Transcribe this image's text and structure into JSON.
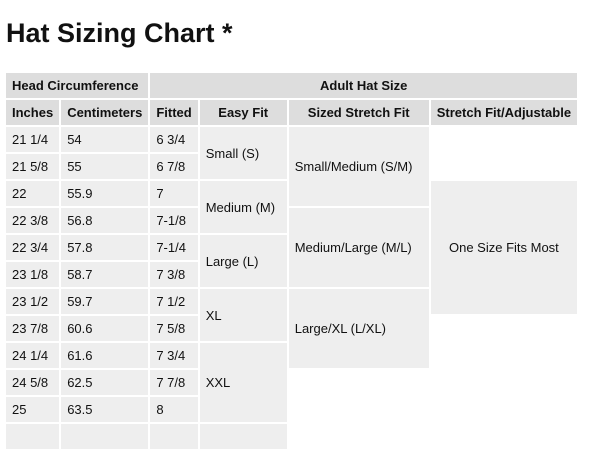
{
  "title": "Hat Sizing Chart *",
  "group_headers": {
    "head": "Head Circumference",
    "adult": "Adult Hat Size"
  },
  "columns": [
    "Inches",
    "Centimeters",
    "Fitted",
    "Easy Fit",
    "Sized Stretch Fit",
    "Stretch Fit/Adjustable"
  ],
  "rows": [
    [
      "21 1/4",
      "54",
      "6 3/4"
    ],
    [
      "21 5/8",
      "55",
      "6 7/8"
    ],
    [
      "22",
      "55.9",
      "7"
    ],
    [
      "22 3/8",
      "56.8",
      "7-1/8"
    ],
    [
      "22 3/4",
      "57.8",
      "7-1/4"
    ],
    [
      "23 1/8",
      "58.7",
      "7 3/8"
    ],
    [
      "23 1/2",
      "59.7",
      "7 1/2"
    ],
    [
      "23 7/8",
      "60.6",
      "7 5/8"
    ],
    [
      "24 1/4",
      "61.6",
      "7 3/4"
    ],
    [
      "24 5/8",
      "62.5",
      "7 7/8"
    ],
    [
      "25",
      "63.5",
      "8"
    ]
  ],
  "easy_fit": [
    "Small (S)",
    "Medium (M)",
    "Large (L)",
    "XL",
    "XXL"
  ],
  "sized_stretch": [
    "Small/Medium (S/M)",
    "Medium/Large (M/L)",
    "Large/XL (L/XL)"
  ],
  "stretch_adjustable": "One Size Fits Most"
}
